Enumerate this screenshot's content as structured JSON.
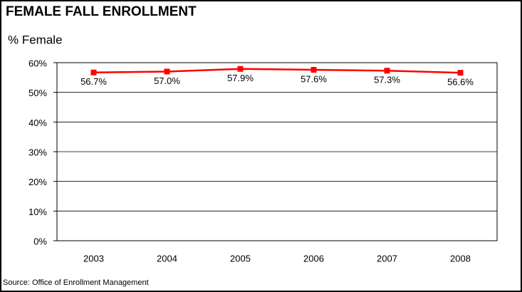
{
  "chart_data": {
    "type": "line",
    "title": "FEMALE FALL ENROLLMENT",
    "subtitle": "% Female",
    "source": "Source:  Office of Enrollment Management",
    "categories": [
      "2003",
      "2004",
      "2005",
      "2006",
      "2007",
      "2008"
    ],
    "series": [
      {
        "name": "% Female",
        "color": "#ff0000",
        "values": [
          56.7,
          57.0,
          57.9,
          57.6,
          57.3,
          56.6
        ],
        "value_labels": [
          "56.7%",
          "57.0%",
          "57.9%",
          "57.6%",
          "57.3%",
          "56.6%"
        ]
      }
    ],
    "ylim": [
      0,
      60
    ],
    "yticks": [
      {
        "value": 0,
        "label": "0%"
      },
      {
        "value": 10,
        "label": "10%"
      },
      {
        "value": 20,
        "label": "20%"
      },
      {
        "value": 30,
        "label": "30%"
      },
      {
        "value": 40,
        "label": "40%"
      },
      {
        "value": 50,
        "label": "50%"
      },
      {
        "value": 60,
        "label": "60%"
      }
    ],
    "grid": true
  }
}
